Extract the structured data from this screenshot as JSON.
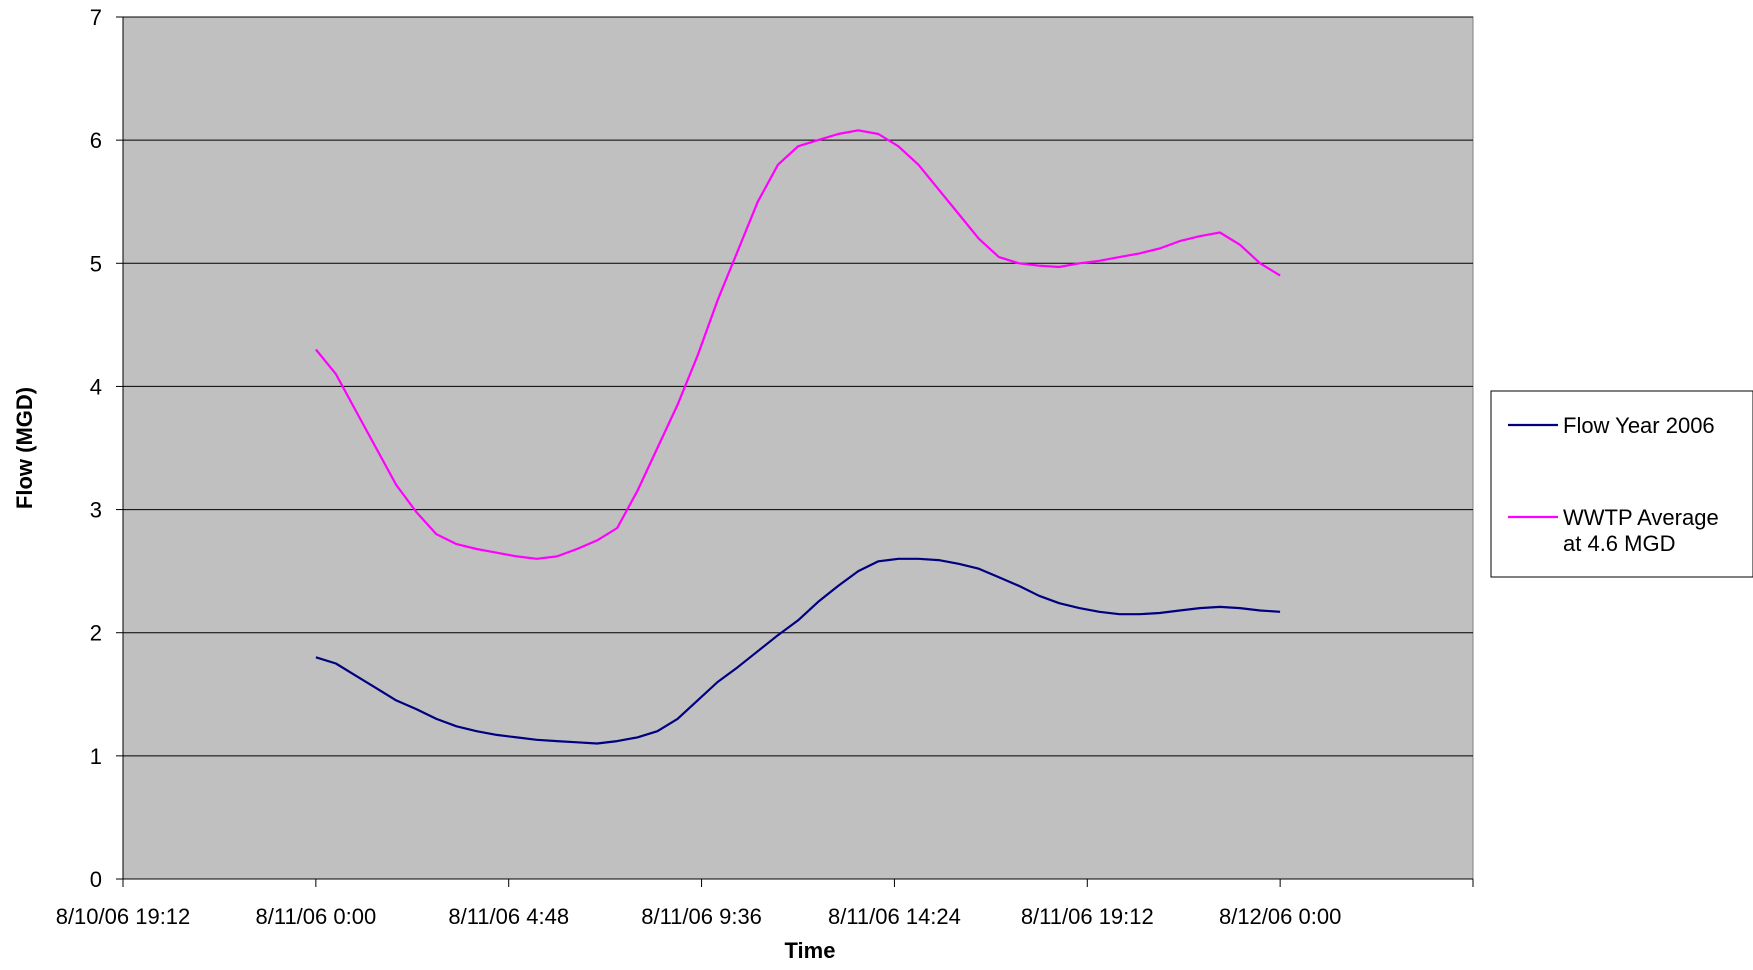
{
  "chart_data": {
    "type": "line",
    "title": "",
    "xlabel": "Time",
    "ylabel": "Flow (MGD)",
    "ylim": [
      0,
      7
    ],
    "yticks": [
      0,
      1,
      2,
      3,
      4,
      5,
      6,
      7
    ],
    "xlim": [
      "8/10/06 19:12",
      "8/12/06 4:48"
    ],
    "xticks": [
      "8/10/06 19:12",
      "8/11/06 0:00",
      "8/11/06 4:48",
      "8/11/06 9:36",
      "8/11/06 14:24",
      "8/11/06 19:12",
      "8/12/06 0:00"
    ],
    "grid": "horizontal",
    "plot_background": "#C0C0C0",
    "legend_position": "right",
    "series": [
      {
        "name": "Flow Year 2006",
        "color": "#000080",
        "x": [
          "8/11/06 0:00",
          "8/11/06 0:30",
          "8/11/06 1:00",
          "8/11/06 1:30",
          "8/11/06 2:00",
          "8/11/06 2:30",
          "8/11/06 3:00",
          "8/11/06 3:30",
          "8/11/06 4:00",
          "8/11/06 4:30",
          "8/11/06 5:00",
          "8/11/06 5:30",
          "8/11/06 6:00",
          "8/11/06 6:30",
          "8/11/06 7:00",
          "8/11/06 7:30",
          "8/11/06 8:00",
          "8/11/06 8:30",
          "8/11/06 9:00",
          "8/11/06 9:30",
          "8/11/06 10:00",
          "8/11/06 10:30",
          "8/11/06 11:00",
          "8/11/06 11:30",
          "8/11/06 12:00",
          "8/11/06 12:30",
          "8/11/06 13:00",
          "8/11/06 13:30",
          "8/11/06 14:00",
          "8/11/06 14:30",
          "8/11/06 15:00",
          "8/11/06 15:30",
          "8/11/06 16:00",
          "8/11/06 16:30",
          "8/11/06 17:00",
          "8/11/06 17:30",
          "8/11/06 18:00",
          "8/11/06 18:30",
          "8/11/06 19:00",
          "8/11/06 19:30",
          "8/11/06 20:00",
          "8/11/06 20:30",
          "8/11/06 21:00",
          "8/11/06 21:30",
          "8/11/06 22:00",
          "8/11/06 22:30",
          "8/11/06 23:00",
          "8/11/06 23:30",
          "8/12/06 0:00"
        ],
        "values": [
          1.8,
          1.75,
          1.65,
          1.55,
          1.45,
          1.38,
          1.3,
          1.24,
          1.2,
          1.17,
          1.15,
          1.13,
          1.12,
          1.11,
          1.1,
          1.12,
          1.15,
          1.2,
          1.3,
          1.45,
          1.6,
          1.72,
          1.85,
          1.98,
          2.1,
          2.25,
          2.38,
          2.5,
          2.58,
          2.6,
          2.6,
          2.59,
          2.56,
          2.52,
          2.45,
          2.38,
          2.3,
          2.24,
          2.2,
          2.17,
          2.15,
          2.15,
          2.16,
          2.18,
          2.2,
          2.21,
          2.2,
          2.18,
          2.17
        ]
      },
      {
        "name": "WWTP Average at 4.6 MGD",
        "color": "#FF00FF",
        "x": [
          "8/11/06 0:00",
          "8/11/06 0:30",
          "8/11/06 1:00",
          "8/11/06 1:30",
          "8/11/06 2:00",
          "8/11/06 2:30",
          "8/11/06 3:00",
          "8/11/06 3:30",
          "8/11/06 4:00",
          "8/11/06 4:30",
          "8/11/06 5:00",
          "8/11/06 5:30",
          "8/11/06 6:00",
          "8/11/06 6:30",
          "8/11/06 7:00",
          "8/11/06 7:30",
          "8/11/06 8:00",
          "8/11/06 8:30",
          "8/11/06 9:00",
          "8/11/06 9:30",
          "8/11/06 10:00",
          "8/11/06 10:30",
          "8/11/06 11:00",
          "8/11/06 11:30",
          "8/11/06 12:00",
          "8/11/06 12:30",
          "8/11/06 13:00",
          "8/11/06 13:30",
          "8/11/06 14:00",
          "8/11/06 14:30",
          "8/11/06 15:00",
          "8/11/06 15:30",
          "8/11/06 16:00",
          "8/11/06 16:30",
          "8/11/06 17:00",
          "8/11/06 17:30",
          "8/11/06 18:00",
          "8/11/06 18:30",
          "8/11/06 19:00",
          "8/11/06 19:30",
          "8/11/06 20:00",
          "8/11/06 20:30",
          "8/11/06 21:00",
          "8/11/06 21:30",
          "8/11/06 22:00",
          "8/11/06 22:30",
          "8/11/06 23:00",
          "8/11/06 23:30",
          "8/12/06 0:00"
        ],
        "values": [
          4.3,
          4.1,
          3.8,
          3.5,
          3.2,
          2.98,
          2.8,
          2.72,
          2.68,
          2.65,
          2.62,
          2.6,
          2.62,
          2.68,
          2.75,
          2.85,
          3.15,
          3.5,
          3.85,
          4.25,
          4.7,
          5.1,
          5.5,
          5.8,
          5.95,
          6.0,
          6.05,
          6.08,
          6.05,
          5.95,
          5.8,
          5.6,
          5.4,
          5.2,
          5.05,
          5.0,
          4.98,
          4.97,
          5.0,
          5.02,
          5.05,
          5.08,
          5.12,
          5.18,
          5.22,
          5.25,
          5.15,
          5.0,
          4.9
        ]
      }
    ]
  }
}
